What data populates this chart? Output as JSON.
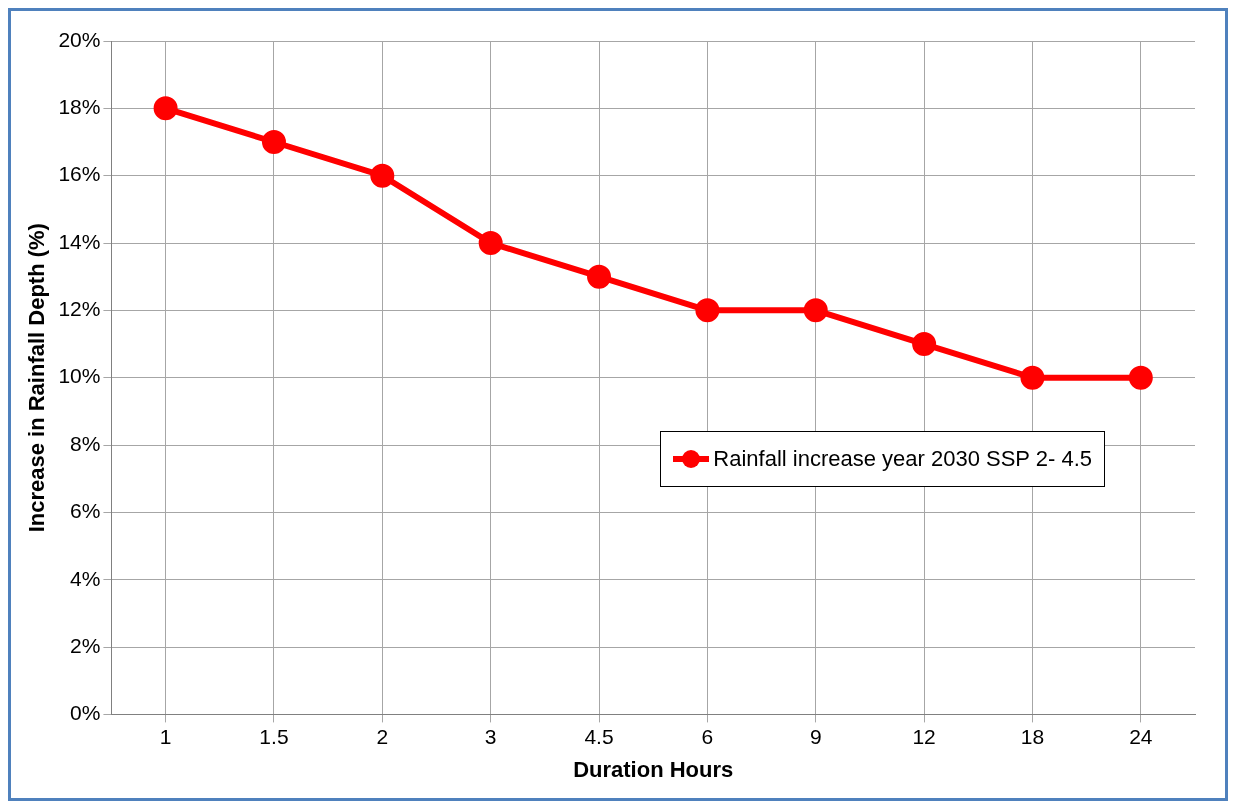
{
  "chart_data": {
    "type": "line",
    "xlabel": "Duration Hours",
    "ylabel": "Increase in Rainfall Depth (%)",
    "categories": [
      "1",
      "1.5",
      "2",
      "3",
      "4.5",
      "6",
      "9",
      "12",
      "18",
      "24"
    ],
    "series": [
      {
        "name": "Rainfall increase year 2030 SSP 2- 4.5",
        "color": "#ff0000",
        "values": [
          18,
          17,
          16,
          14,
          13,
          12,
          12,
          11,
          10,
          10
        ]
      }
    ],
    "ylim": [
      0,
      20
    ],
    "yticks": [
      {
        "value": 0,
        "label": "0%"
      },
      {
        "value": 2,
        "label": "2%"
      },
      {
        "value": 4,
        "label": "4%"
      },
      {
        "value": 6,
        "label": "6%"
      },
      {
        "value": 8,
        "label": "8%"
      },
      {
        "value": 10,
        "label": "10%"
      },
      {
        "value": 12,
        "label": "12%"
      },
      {
        "value": 14,
        "label": "14%"
      },
      {
        "value": 16,
        "label": "16%"
      },
      {
        "value": 18,
        "label": "18%"
      },
      {
        "value": 20,
        "label": "20%"
      }
    ],
    "grid": true,
    "legend": "right",
    "marker": "circle",
    "line_style": "solid"
  }
}
